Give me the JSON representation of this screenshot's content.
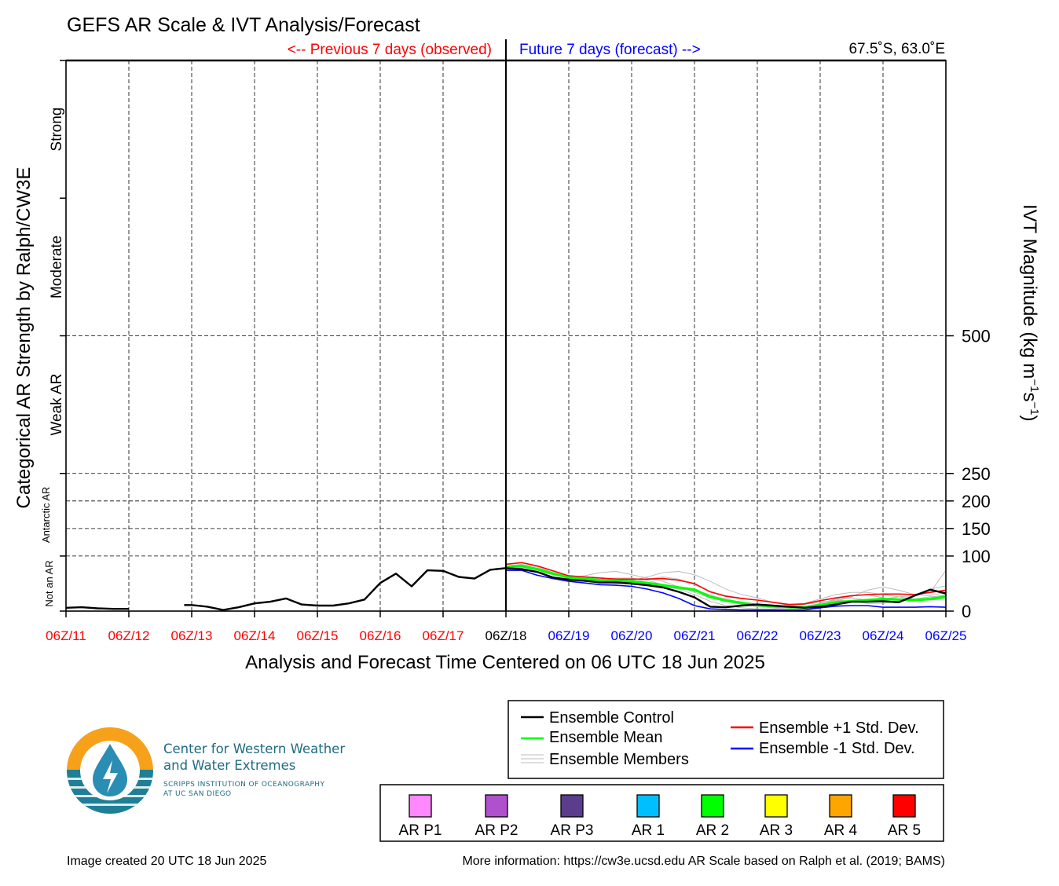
{
  "chart_data": {
    "type": "line",
    "title": "GEFS AR Scale & IVT Analysis/Forecast",
    "observed_label": "<-- Previous 7 days (observed)",
    "forecast_label": "Future 7 days (forecast) -->",
    "location": "67.5˚S, 63.0˚E",
    "xlabel": "Analysis and Forecast Time Centered on 06 UTC 18 Jun 2025",
    "ylabel_left": "Categorical AR Strength by Ralph/CW3E",
    "ylabel_right_main": "IVT Magnitude (kg m",
    "ylabel_right_sup1": "−1",
    "ylabel_right_mid": "s",
    "ylabel_right_sup2": "−1",
    "ylabel_right_end": ")",
    "x_ticks": [
      {
        "label": "06Z/11",
        "color": "#ff0000"
      },
      {
        "label": "06Z/12",
        "color": "#ff0000"
      },
      {
        "label": "06Z/13",
        "color": "#ff0000"
      },
      {
        "label": "06Z/14",
        "color": "#ff0000"
      },
      {
        "label": "06Z/15",
        "color": "#ff0000"
      },
      {
        "label": "06Z/16",
        "color": "#ff0000"
      },
      {
        "label": "06Z/17",
        "color": "#ff0000"
      },
      {
        "label": "06Z/18",
        "color": "#000000"
      },
      {
        "label": "06Z/19",
        "color": "#0000ff"
      },
      {
        "label": "06Z/20",
        "color": "#0000ff"
      },
      {
        "label": "06Z/21",
        "color": "#0000ff"
      },
      {
        "label": "06Z/22",
        "color": "#0000ff"
      },
      {
        "label": "06Z/23",
        "color": "#0000ff"
      },
      {
        "label": "06Z/24",
        "color": "#0000ff"
      },
      {
        "label": "06Z/25",
        "color": "#0000ff"
      }
    ],
    "xlim_days": [
      0,
      14
    ],
    "ylim": [
      0,
      1000
    ],
    "y_ticks": [
      0,
      100,
      150,
      200,
      250,
      500
    ],
    "y_gridlines": [
      100,
      150,
      200,
      250,
      500
    ],
    "categories": [
      {
        "label": "Strong",
        "y": 875
      },
      {
        "label": "Moderate",
        "y": 625
      },
      {
        "label": "Weak AR",
        "y": 375
      },
      {
        "label": "Antarctic AR",
        "y": 175
      },
      {
        "label": "Not an AR",
        "y": 50
      }
    ],
    "series": [
      {
        "name": "Ensemble Control",
        "color": "#000000",
        "x": [
          0,
          0.25,
          0.5,
          0.75,
          1.0,
          null,
          1.88,
          2.0,
          2.25,
          2.5,
          2.75,
          3.0,
          3.25,
          3.5,
          3.75,
          4.0,
          4.25,
          4.5,
          4.75,
          5.0,
          5.25,
          5.5,
          5.75,
          6.0,
          6.25,
          6.5,
          6.75,
          7.0,
          7.25,
          7.5,
          7.75,
          8.0,
          8.25,
          8.5,
          8.75,
          9.0,
          9.25,
          9.5,
          9.75,
          10.0,
          10.25,
          10.5,
          10.75,
          11.0,
          11.25,
          11.5,
          11.75,
          12.0,
          12.25,
          12.5,
          12.75,
          13.0,
          13.25,
          13.5,
          13.75,
          14.0
        ],
        "y": [
          6,
          7,
          5,
          4,
          4,
          null,
          11,
          11,
          8,
          2,
          7,
          14,
          17,
          23,
          12,
          10,
          10,
          14,
          21,
          51,
          68,
          45,
          74,
          73,
          62,
          59,
          75,
          78,
          76,
          71,
          61,
          57,
          55,
          52,
          52,
          50,
          47,
          43,
          35,
          25,
          8,
          7,
          10,
          12,
          10,
          8,
          6,
          8,
          12,
          17,
          17,
          18,
          16,
          28,
          39,
          32
        ]
      },
      {
        "name": "Ensemble Mean",
        "color": "#00ff00",
        "x": [
          7.0,
          7.25,
          7.5,
          7.75,
          8.0,
          8.25,
          8.5,
          8.75,
          9.0,
          9.25,
          9.5,
          9.75,
          10.0,
          10.25,
          10.5,
          10.75,
          11.0,
          11.25,
          11.5,
          11.75,
          12.0,
          12.25,
          12.5,
          12.75,
          13.0,
          13.25,
          13.5,
          13.75,
          14.0
        ],
        "y": [
          80,
          82,
          76,
          68,
          61,
          59,
          56,
          55,
          54,
          51,
          47,
          43,
          39,
          26,
          19,
          15,
          11,
          9,
          7,
          7,
          11,
          16,
          18,
          20,
          22,
          21,
          20,
          22,
          26
        ]
      },
      {
        "name": "Ensemble +1 Std. Dev.",
        "color": "#ff0000",
        "x": [
          7.0,
          7.25,
          7.5,
          7.75,
          8.0,
          8.25,
          8.5,
          8.75,
          9.0,
          9.25,
          9.5,
          9.75,
          10.0,
          10.25,
          10.5,
          10.75,
          11.0,
          11.25,
          11.5,
          11.75,
          12.0,
          12.25,
          12.5,
          12.75,
          13.0,
          13.25,
          13.5,
          13.75,
          14.0
        ],
        "y": [
          85,
          88,
          82,
          73,
          64,
          62,
          60,
          58,
          58,
          58,
          59,
          56,
          50,
          35,
          27,
          23,
          20,
          16,
          12,
          13,
          19,
          24,
          28,
          30,
          31,
          31,
          30,
          34,
          38
        ]
      },
      {
        "name": "Ensemble -1 Std. Dev.",
        "color": "#0000ff",
        "x": [
          7.0,
          7.25,
          7.5,
          7.75,
          8.0,
          8.25,
          8.5,
          8.75,
          9.0,
          9.25,
          9.5,
          9.75,
          10.0,
          10.25,
          10.5,
          10.75,
          11.0,
          11.25,
          11.5,
          11.75,
          12.0,
          12.25,
          12.5,
          12.75,
          13.0,
          13.25,
          13.5,
          13.75,
          14.0
        ],
        "y": [
          74,
          74,
          65,
          59,
          54,
          51,
          48,
          47,
          45,
          40,
          33,
          23,
          10,
          4,
          3,
          2,
          2,
          2,
          2,
          2,
          6,
          9,
          10,
          10,
          7,
          7,
          7,
          8,
          7
        ]
      }
    ],
    "members_label": "Ensemble Members",
    "members": [
      [
        80,
        78,
        72,
        66,
        62,
        64,
        70,
        72,
        66,
        60,
        54,
        44,
        34,
        24,
        18,
        12,
        8,
        6,
        6,
        8,
        14,
        22,
        24,
        20,
        18,
        18,
        20,
        24,
        30
      ],
      [
        82,
        85,
        80,
        70,
        62,
        58,
        52,
        50,
        52,
        58,
        62,
        58,
        48,
        36,
        28,
        24,
        20,
        16,
        12,
        14,
        22,
        30,
        34,
        34,
        30,
        26,
        22,
        20,
        22
      ],
      [
        78,
        80,
        74,
        68,
        64,
        60,
        56,
        54,
        56,
        62,
        70,
        72,
        66,
        54,
        40,
        30,
        24,
        16,
        10,
        8,
        12,
        18,
        26,
        38,
        44,
        38,
        30,
        28,
        34
      ],
      [
        80,
        82,
        78,
        70,
        60,
        56,
        54,
        56,
        54,
        50,
        44,
        40,
        38,
        30,
        20,
        12,
        8,
        8,
        10,
        12,
        16,
        20,
        18,
        14,
        14,
        18,
        28,
        40,
        46
      ],
      [
        79,
        81,
        75,
        66,
        60,
        58,
        58,
        60,
        60,
        56,
        48,
        40,
        30,
        18,
        10,
        6,
        4,
        4,
        6,
        8,
        12,
        14,
        16,
        18,
        22,
        26,
        28,
        34,
        74
      ],
      [
        81,
        83,
        77,
        69,
        63,
        60,
        57,
        55,
        53,
        50,
        46,
        42,
        36,
        28,
        22,
        16,
        12,
        10,
        8,
        8,
        12,
        20,
        28,
        30,
        24,
        20,
        22,
        26,
        28
      ]
    ],
    "legend": [
      {
        "name": "Ensemble Control",
        "color": "#000000"
      },
      {
        "name": "Ensemble Mean",
        "color": "#00ff00"
      },
      {
        "name": "Ensemble Members",
        "color": "#aaaaaa"
      },
      {
        "name": "Ensemble +1 Std. Dev.",
        "color": "#ff0000"
      },
      {
        "name": "Ensemble -1 Std. Dev.",
        "color": "#0000ff"
      }
    ],
    "ar_scale": [
      {
        "label": "AR P1",
        "color": "#ff88ff"
      },
      {
        "label": "AR P2",
        "color": "#b050cc"
      },
      {
        "label": "AR P3",
        "color": "#5a3d8c"
      },
      {
        "label": "AR 1",
        "color": "#00bfff"
      },
      {
        "label": "AR 2",
        "color": "#00ff00"
      },
      {
        "label": "AR 3",
        "color": "#ffff00"
      },
      {
        "label": "AR 4",
        "color": "#ffa500"
      },
      {
        "label": "AR 5",
        "color": "#ff0000"
      }
    ]
  },
  "logo": {
    "line1": "Center for Western Weather",
    "line2": "and Water Extremes",
    "sub1": "SCRIPPS INSTITUTION OF OCEANOGRAPHY",
    "sub2": "AT UC SAN DIEGO"
  },
  "footer": {
    "created": "Image created 20 UTC 18 Jun 2025",
    "more_info": "More information: https://cw3e.ucsd.edu AR Scale based on Ralph et al. (2019; BAMS)"
  }
}
